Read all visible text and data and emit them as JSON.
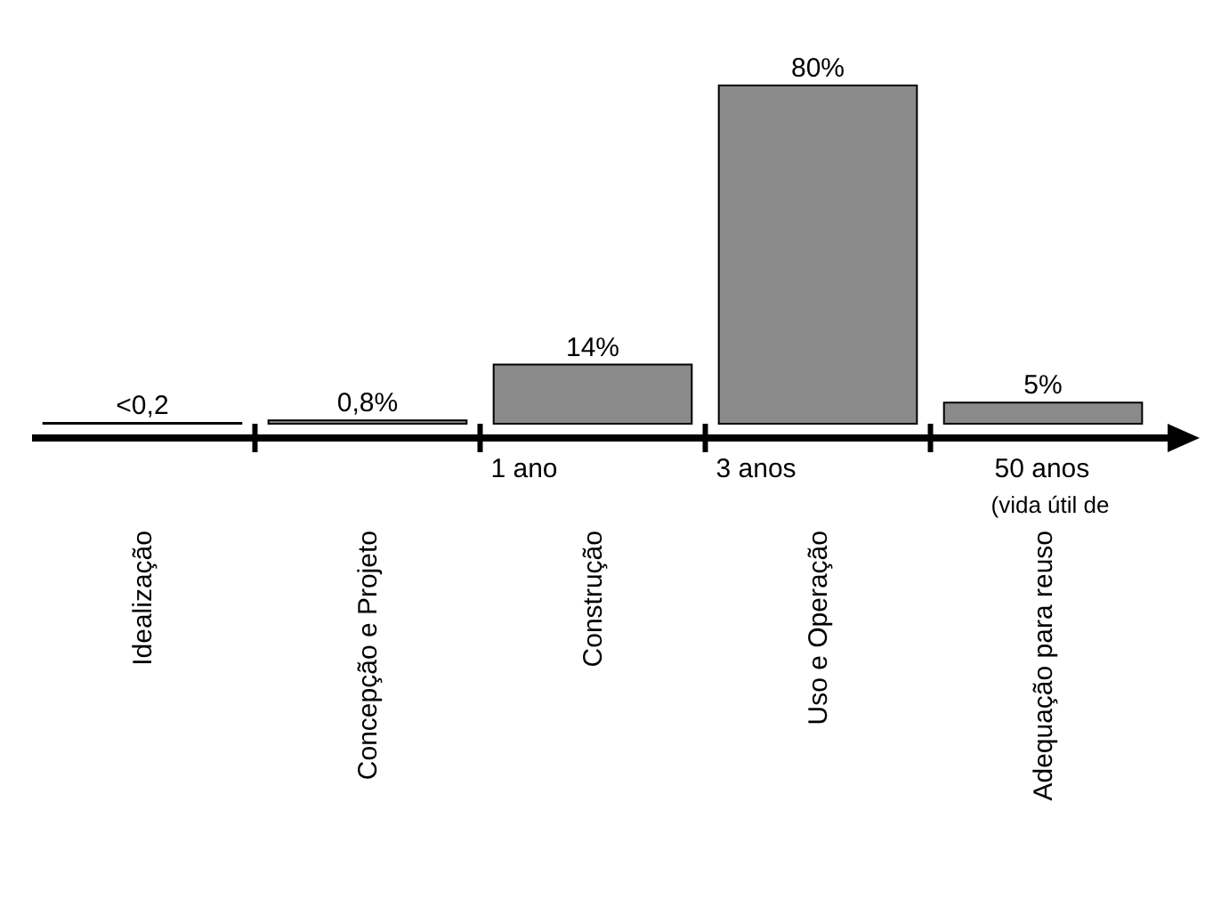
{
  "chart_data": {
    "type": "bar",
    "categories": [
      "Idealização",
      "Concepção e Projeto",
      "Construção",
      "Uso e Operação",
      "Adequação para reuso"
    ],
    "values": [
      0.2,
      0.8,
      14,
      80,
      5
    ],
    "value_labels": [
      "<0,2",
      "0,8%",
      "14%",
      "80%",
      "5%"
    ],
    "color": "#8a8a8a",
    "annotations": [
      "1 ano",
      "3 anos",
      "50 anos",
      "(vida útil de"
    ]
  }
}
